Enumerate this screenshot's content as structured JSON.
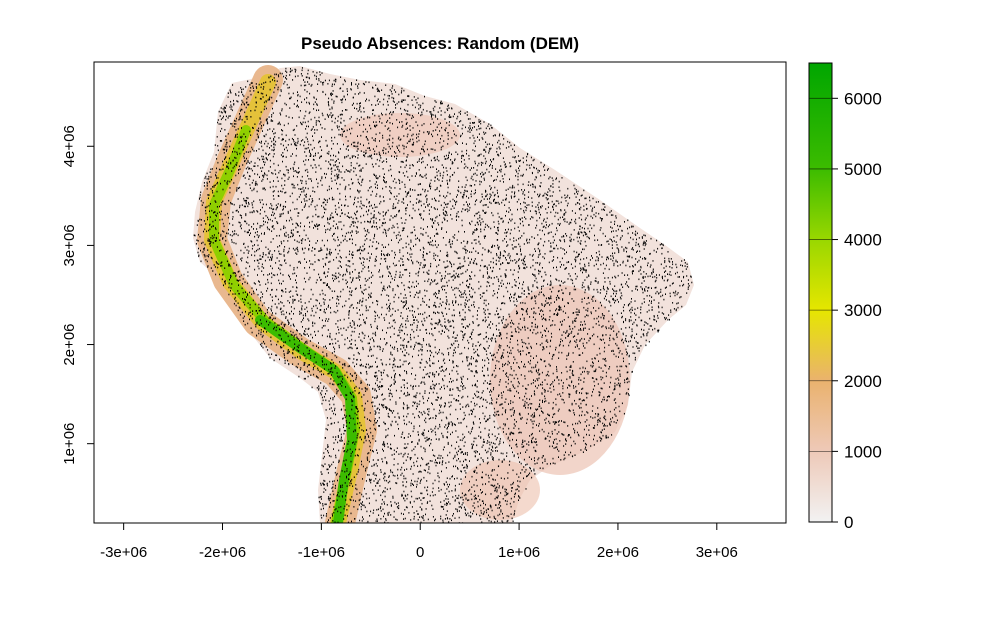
{
  "chart_data": {
    "type": "heatmap",
    "title": "Pseudo Absences: Random (DEM)",
    "xlabel": "",
    "ylabel": "",
    "xlim": [
      -3300000,
      3700000
    ],
    "ylim": [
      200000,
      4850000
    ],
    "x_ticks": [
      -3000000,
      -2000000,
      -1000000,
      0,
      1000000,
      2000000,
      3000000
    ],
    "x_tick_labels": [
      "-3e+06",
      "-2e+06",
      "-1e+06",
      "0",
      "1e+06",
      "2e+06",
      "3e+06"
    ],
    "y_ticks": [
      1000000,
      2000000,
      3000000,
      4000000
    ],
    "y_tick_labels": [
      "1e+06",
      "2e+06",
      "3e+06",
      "4e+06"
    ],
    "raster_layer": "DEM",
    "points_layer": "random pseudo absences",
    "point_count_approx": 9000,
    "legend": {
      "placement": "right",
      "range": [
        0,
        6500
      ],
      "ticks": [
        0,
        1000,
        2000,
        3000,
        4000,
        5000,
        6000
      ],
      "tick_labels": [
        "0",
        "1000",
        "2000",
        "3000",
        "4000",
        "5000",
        "6000"
      ],
      "color_stops": [
        {
          "value": 0,
          "color": "#f2f2f2"
        },
        {
          "value": 1000,
          "color": "#eec9b8"
        },
        {
          "value": 2000,
          "color": "#eab26e"
        },
        {
          "value": 3000,
          "color": "#e6e600"
        },
        {
          "value": 4000,
          "color": "#99d700"
        },
        {
          "value": 5000,
          "color": "#3cbc00"
        },
        {
          "value": 6500,
          "color": "#00a600"
        }
      ]
    },
    "grid": false
  }
}
